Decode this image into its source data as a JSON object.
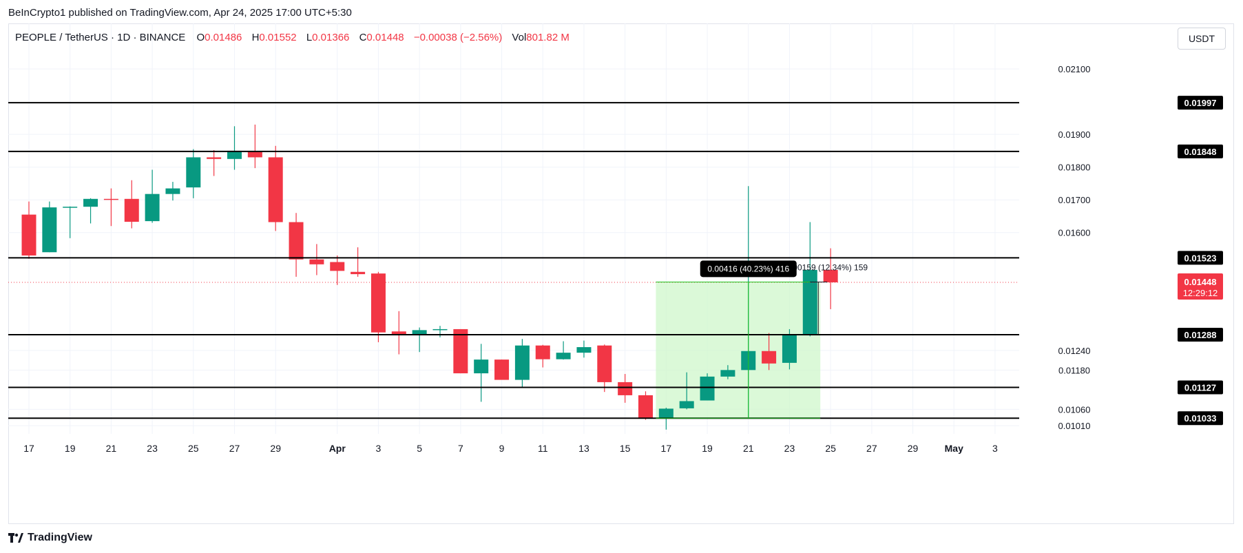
{
  "published": "BeInCrypto1 published on TradingView.com, Apr 24, 2025 17:00 UTC+5:30",
  "legend": {
    "symbol": "PEOPLE / TetherUS · 1D · BINANCE",
    "o_label": "O",
    "o": "0.01486",
    "h_label": "H",
    "h": "0.01552",
    "l_label": "L",
    "l": "0.01366",
    "c_label": "C",
    "c": "0.01448",
    "change": "−0.00038 (−2.56%)",
    "vol_label": "Vol",
    "vol": "801.82 M"
  },
  "currency_button": "USDT",
  "brand": "TradingView",
  "colors": {
    "up": "#089981",
    "down": "#f23645",
    "level": "#000000",
    "range_fill": "#ccf7c8"
  },
  "chart_data": {
    "type": "candlestick",
    "ylim": [
      0.00985,
      0.02155
    ],
    "y_ticks": [
      "0.02100",
      "0.01900",
      "0.01800",
      "0.01700",
      "0.01600",
      "0.01240",
      "0.01180",
      "0.01060",
      "0.01010"
    ],
    "x_ticks": [
      {
        "label": "17",
        "x": 0
      },
      {
        "label": "19",
        "x": 2
      },
      {
        "label": "21",
        "x": 4
      },
      {
        "label": "23",
        "x": 6
      },
      {
        "label": "25",
        "x": 8
      },
      {
        "label": "27",
        "x": 10
      },
      {
        "label": "29",
        "x": 12
      },
      {
        "label": "Apr",
        "x": 15
      },
      {
        "label": "3",
        "x": 17
      },
      {
        "label": "5",
        "x": 19
      },
      {
        "label": "7",
        "x": 21
      },
      {
        "label": "9",
        "x": 23
      },
      {
        "label": "11",
        "x": 25
      },
      {
        "label": "13",
        "x": 27
      },
      {
        "label": "15",
        "x": 29
      },
      {
        "label": "17",
        "x": 31
      },
      {
        "label": "19",
        "x": 33
      },
      {
        "label": "21",
        "x": 35
      },
      {
        "label": "23",
        "x": 37
      },
      {
        "label": "25",
        "x": 39
      },
      {
        "label": "27",
        "x": 41
      },
      {
        "label": "29",
        "x": 43
      },
      {
        "label": "May",
        "x": 45
      },
      {
        "label": "3",
        "x": 47
      }
    ],
    "candles": [
      {
        "o": 0.01655,
        "h": 0.01695,
        "l": 0.0152,
        "c": 0.0153
      },
      {
        "o": 0.0154,
        "h": 0.01695,
        "l": 0.0154,
        "c": 0.01677
      },
      {
        "o": 0.01677,
        "h": 0.0168,
        "l": 0.01583,
        "c": 0.01679
      },
      {
        "o": 0.01679,
        "h": 0.01705,
        "l": 0.01628,
        "c": 0.01703
      },
      {
        "o": 0.01703,
        "h": 0.01735,
        "l": 0.0162,
        "c": 0.017
      },
      {
        "o": 0.01703,
        "h": 0.0176,
        "l": 0.01613,
        "c": 0.01633
      },
      {
        "o": 0.01635,
        "h": 0.01792,
        "l": 0.0163,
        "c": 0.01718
      },
      {
        "o": 0.01718,
        "h": 0.01755,
        "l": 0.01698,
        "c": 0.01735
      },
      {
        "o": 0.01738,
        "h": 0.01855,
        "l": 0.01705,
        "c": 0.0183
      },
      {
        "o": 0.0183,
        "h": 0.01852,
        "l": 0.01773,
        "c": 0.01825
      },
      {
        "o": 0.01825,
        "h": 0.01925,
        "l": 0.01792,
        "c": 0.0185
      },
      {
        "o": 0.01848,
        "h": 0.0193,
        "l": 0.01797,
        "c": 0.0183
      },
      {
        "o": 0.0183,
        "h": 0.01865,
        "l": 0.01605,
        "c": 0.01632
      },
      {
        "o": 0.01632,
        "h": 0.0166,
        "l": 0.01465,
        "c": 0.01518
      },
      {
        "o": 0.01518,
        "h": 0.01565,
        "l": 0.0147,
        "c": 0.01503
      },
      {
        "o": 0.0151,
        "h": 0.0153,
        "l": 0.0144,
        "c": 0.01483
      },
      {
        "o": 0.0148,
        "h": 0.01555,
        "l": 0.01465,
        "c": 0.01473
      },
      {
        "o": 0.01475,
        "h": 0.0148,
        "l": 0.01265,
        "c": 0.01295
      },
      {
        "o": 0.01298,
        "h": 0.0136,
        "l": 0.01228,
        "c": 0.01286
      },
      {
        "o": 0.01288,
        "h": 0.0131,
        "l": 0.01235,
        "c": 0.01302
      },
      {
        "o": 0.01302,
        "h": 0.01315,
        "l": 0.0128,
        "c": 0.01305
      },
      {
        "o": 0.01305,
        "h": 0.01305,
        "l": 0.0117,
        "c": 0.0117
      },
      {
        "o": 0.0117,
        "h": 0.0126,
        "l": 0.01083,
        "c": 0.01212
      },
      {
        "o": 0.01212,
        "h": 0.01212,
        "l": 0.01155,
        "c": 0.0115
      },
      {
        "o": 0.0115,
        "h": 0.01275,
        "l": 0.01128,
        "c": 0.01255
      },
      {
        "o": 0.01255,
        "h": 0.01257,
        "l": 0.01188,
        "c": 0.01213
      },
      {
        "o": 0.01213,
        "h": 0.01268,
        "l": 0.01212,
        "c": 0.01233
      },
      {
        "o": 0.01233,
        "h": 0.0127,
        "l": 0.01218,
        "c": 0.0125
      },
      {
        "o": 0.01255,
        "h": 0.01258,
        "l": 0.01113,
        "c": 0.01143
      },
      {
        "o": 0.01143,
        "h": 0.01168,
        "l": 0.0108,
        "c": 0.01103
      },
      {
        "o": 0.01103,
        "h": 0.01115,
        "l": 0.01028,
        "c": 0.01032
      },
      {
        "o": 0.01033,
        "h": 0.01065,
        "l": 0.00998,
        "c": 0.01062
      },
      {
        "o": 0.01063,
        "h": 0.01173,
        "l": 0.0106,
        "c": 0.01085
      },
      {
        "o": 0.01087,
        "h": 0.0117,
        "l": 0.01087,
        "c": 0.0116
      },
      {
        "o": 0.0116,
        "h": 0.01195,
        "l": 0.01152,
        "c": 0.0118
      },
      {
        "o": 0.0118,
        "h": 0.01742,
        "l": 0.01035,
        "c": 0.01238
      },
      {
        "o": 0.01238,
        "h": 0.01293,
        "l": 0.0118,
        "c": 0.012
      },
      {
        "o": 0.01202,
        "h": 0.01305,
        "l": 0.01182,
        "c": 0.01288
      },
      {
        "o": 0.0129,
        "h": 0.01632,
        "l": 0.01283,
        "c": 0.01486
      },
      {
        "o": 0.01486,
        "h": 0.01552,
        "l": 0.01366,
        "c": 0.01448
      }
    ],
    "levels": [
      "0.01997",
      "0.01848",
      "0.01523",
      "0.01288",
      "0.01127",
      "0.01033"
    ],
    "last_price": {
      "value": "0.01448",
      "countdown": "12:29:12"
    },
    "range_box": {
      "x_start": 30.5,
      "x_end": 38.5,
      "y_low": 0.01033,
      "y_high": 0.01449
    },
    "measure_primary": {
      "x": 35,
      "label": "0.00416 (40.23%) 416"
    },
    "measure_secondary": {
      "x_start": 38,
      "x_end": 38.5,
      "label": "0.00159 (12.34%) 159"
    },
    "volume_shown": false
  }
}
